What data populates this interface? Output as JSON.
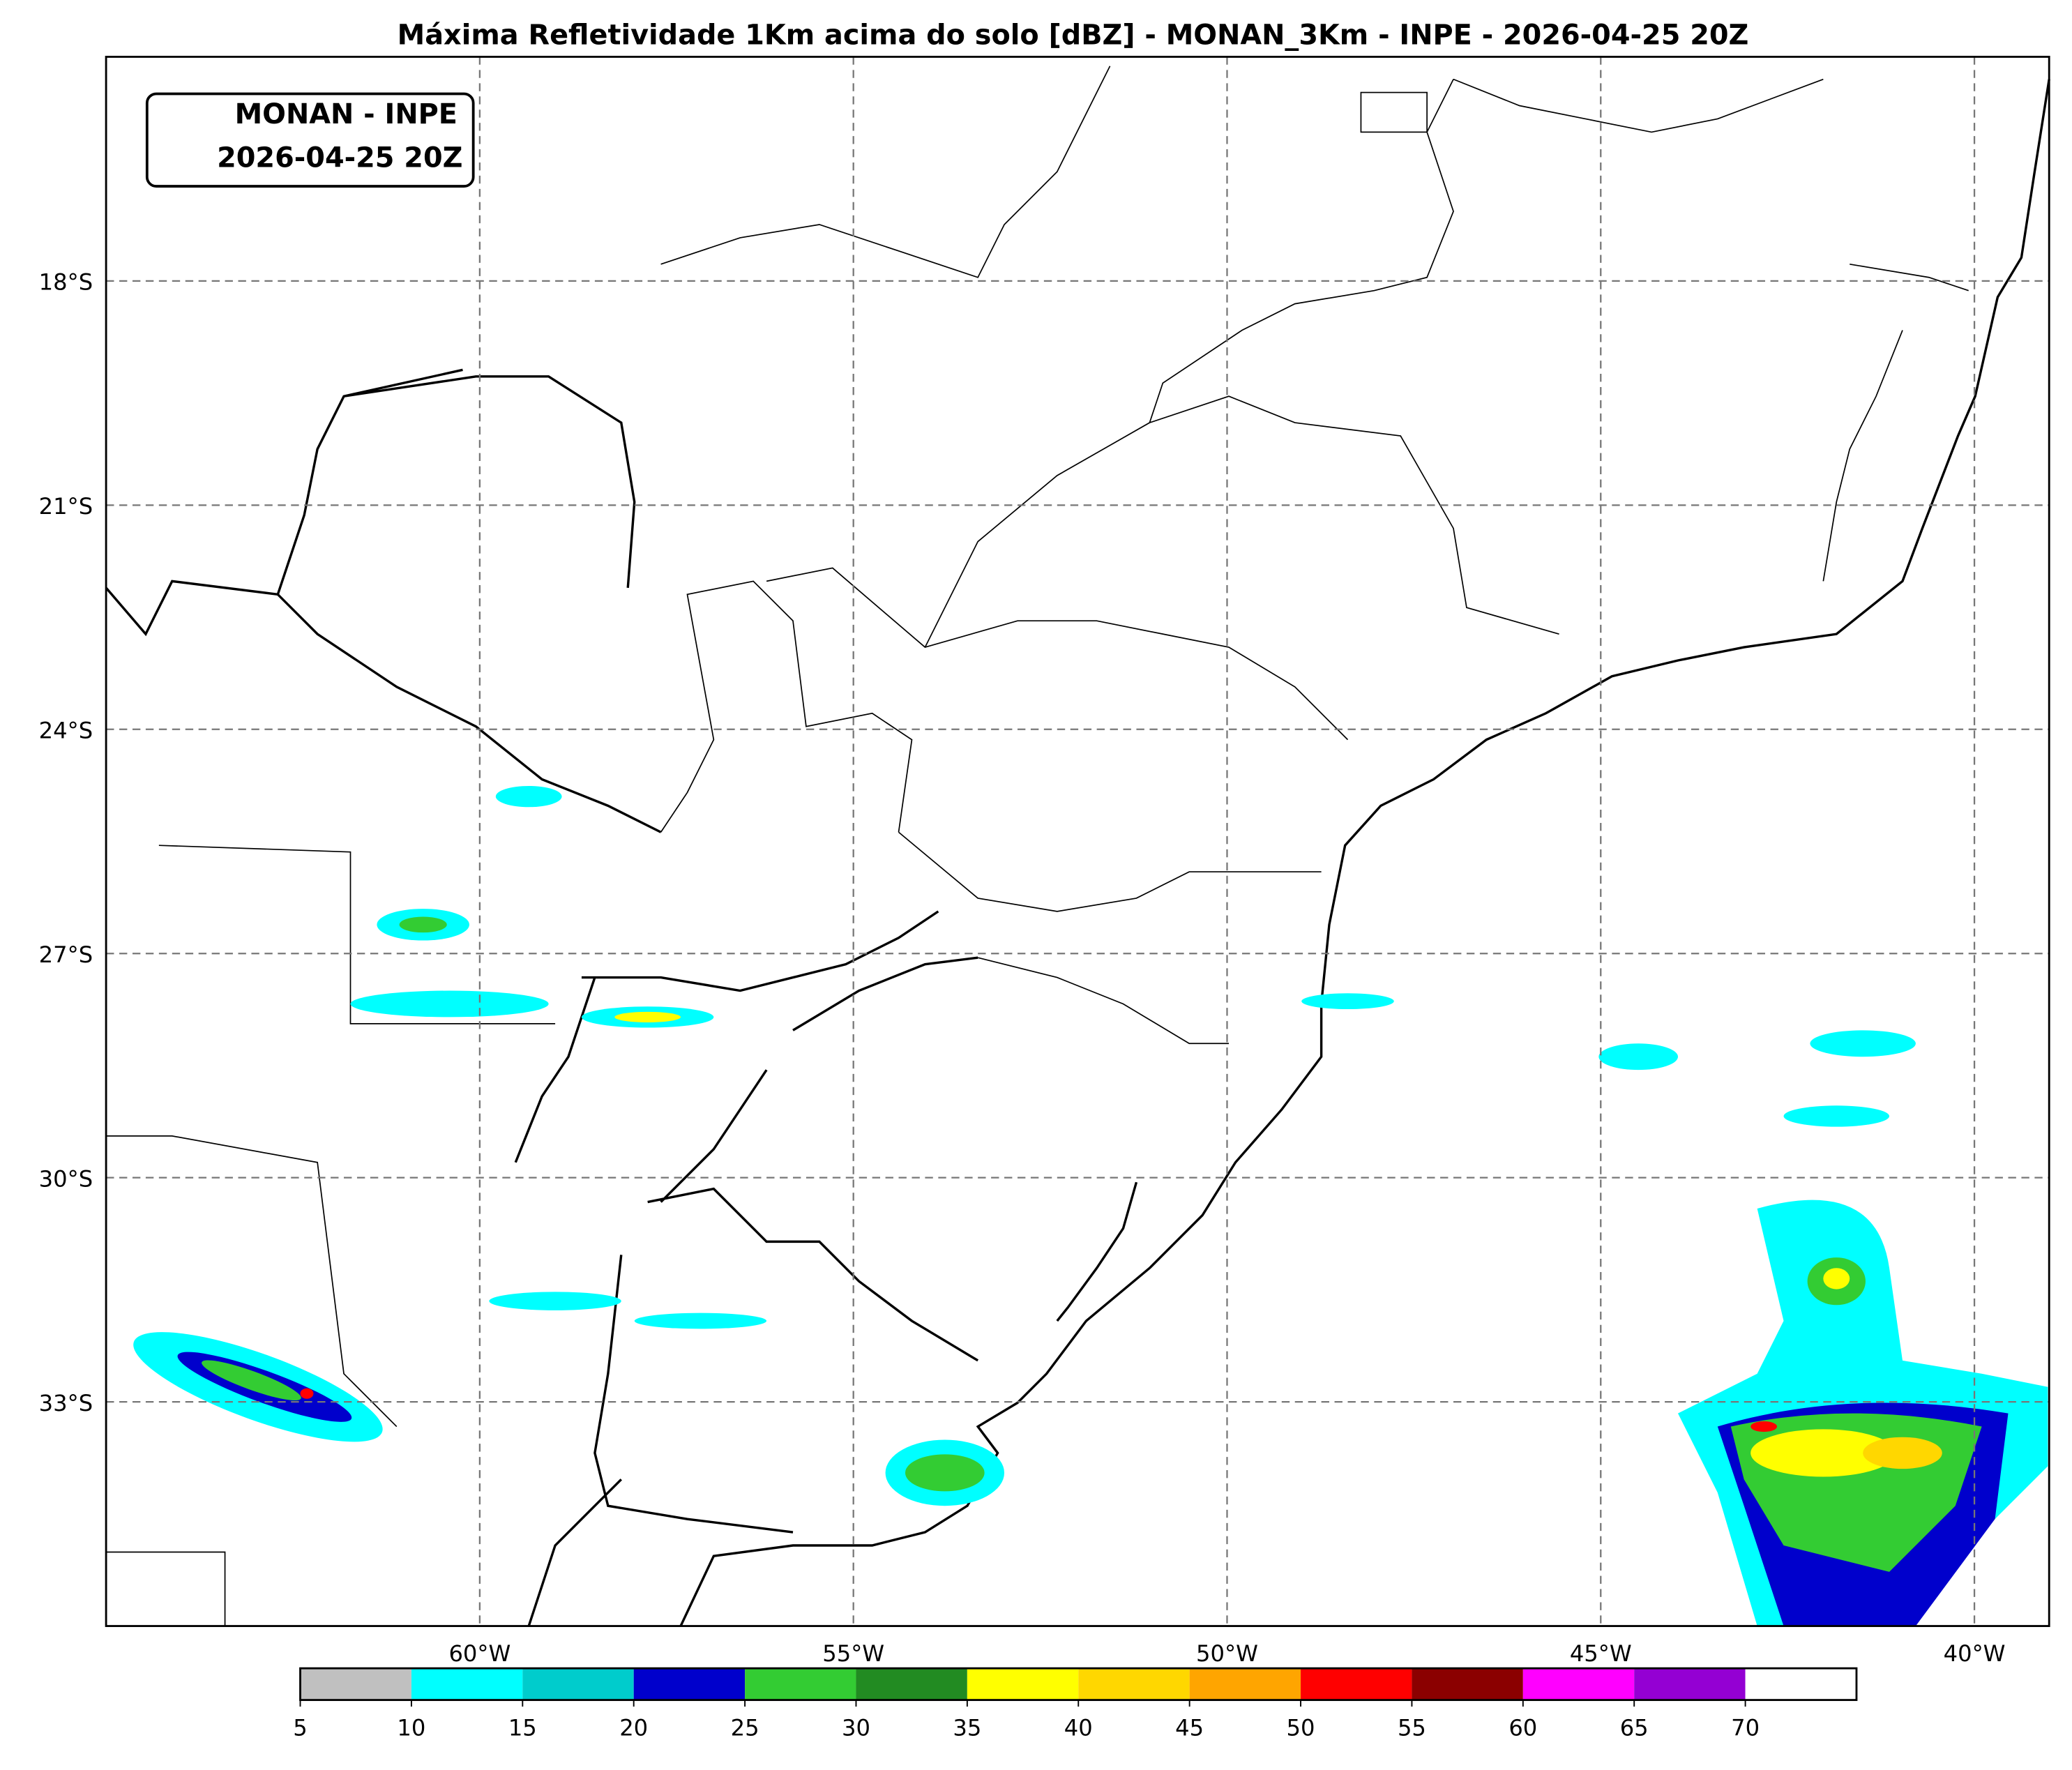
{
  "chart_data": {
    "type": "map",
    "title": "Máxima Refletividade 1Km acima do solo [dBZ] - MONAN_3Km - INPE - 2026-04-25 20Z",
    "label_box": [
      "MONAN - INPE",
      "2026-04-25 20Z"
    ],
    "xlim": [
      -65,
      -39
    ],
    "ylim": [
      -36,
      -15
    ],
    "xticks": [
      {
        "value": -60,
        "label": "60°W"
      },
      {
        "value": -55,
        "label": "55°W"
      },
      {
        "value": -50,
        "label": "50°W"
      },
      {
        "value": -45,
        "label": "45°W"
      },
      {
        "value": -40,
        "label": "40°W"
      }
    ],
    "yticks": [
      {
        "value": -18,
        "label": "18°S"
      },
      {
        "value": -21,
        "label": "21°S"
      },
      {
        "value": -24,
        "label": "24°S"
      },
      {
        "value": -27,
        "label": "27°S"
      },
      {
        "value": -30,
        "label": "30°S"
      },
      {
        "value": -33,
        "label": "33°S"
      }
    ],
    "grid": true,
    "colorbar": {
      "ticks": [
        5,
        10,
        15,
        20,
        25,
        30,
        35,
        40,
        45,
        50,
        55,
        60,
        65,
        70
      ],
      "colors": [
        "#c0c0c0",
        "#00ffff",
        "#00cccc",
        "#0000cc",
        "#33cc33",
        "#228b22",
        "#ffff00",
        "#ffd700",
        "#ffa500",
        "#ff0000",
        "#8b0000",
        "#ff00ff",
        "#9400d3",
        "#ffffff"
      ]
    }
  }
}
